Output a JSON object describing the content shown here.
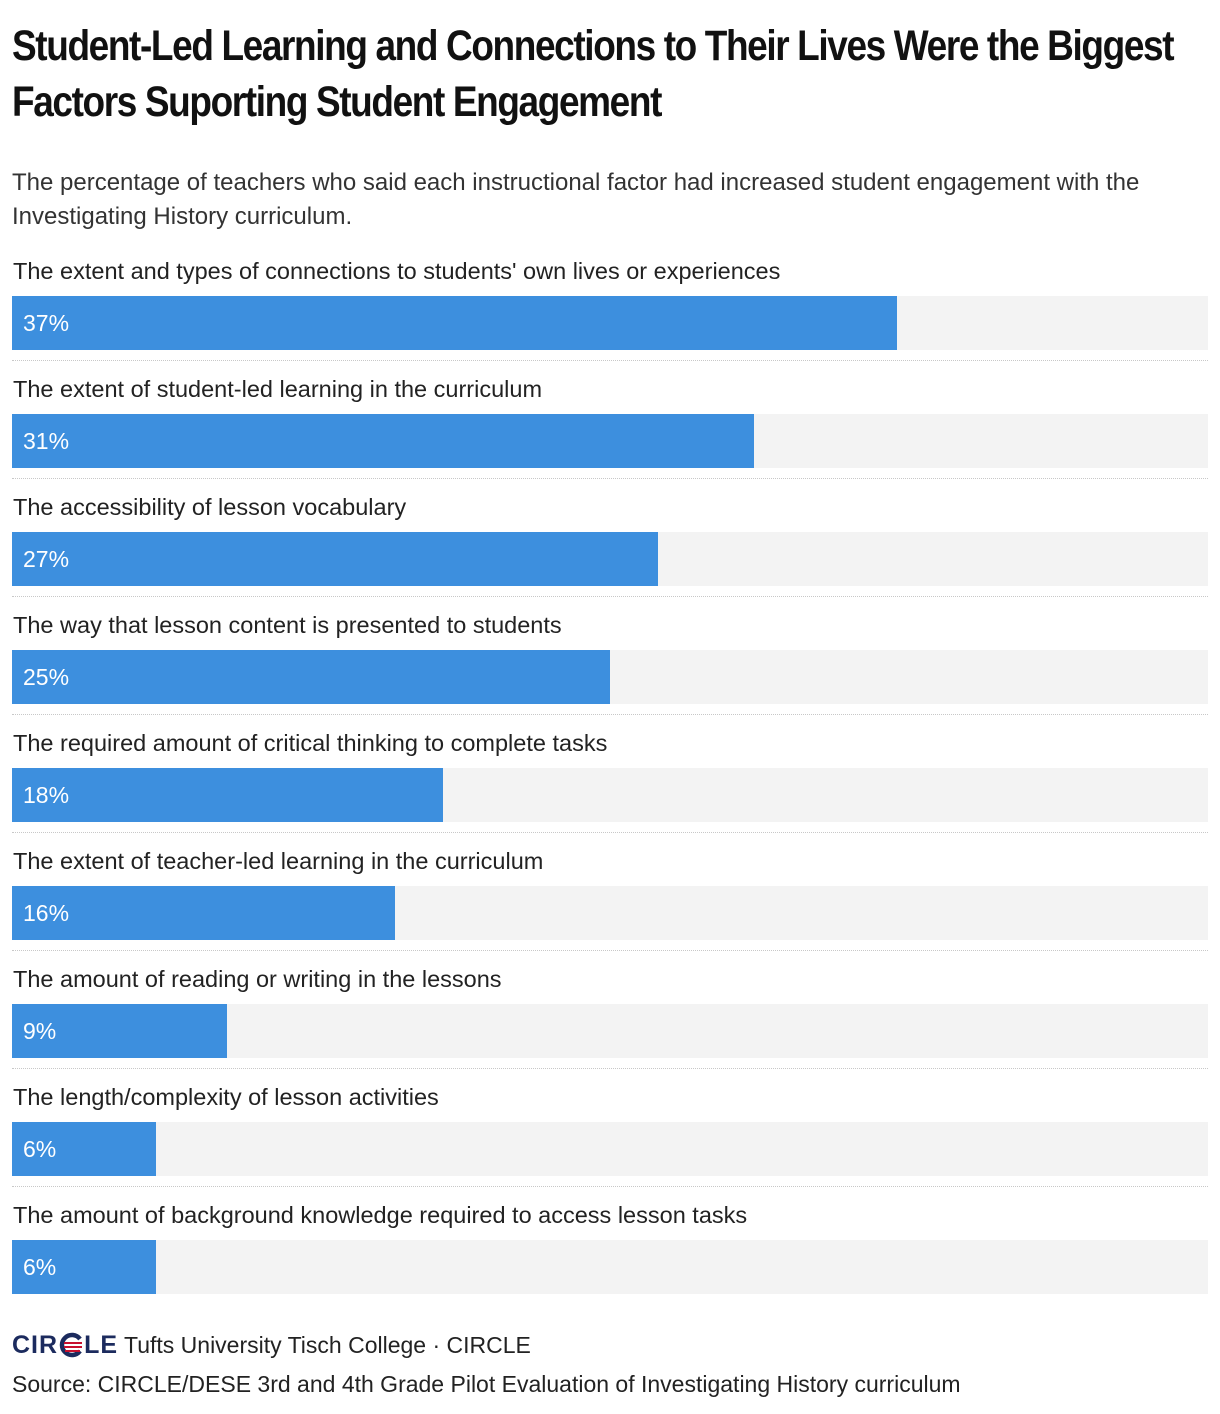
{
  "header": {
    "title": "Student-Led Learning and Connections to Their Lives Were the Biggest Factors Suporting Student Engagement",
    "subtitle": "The percentage of teachers who said each instructional factor had increased student engagement with the Investigating History curriculum."
  },
  "colors": {
    "bar": "#3d8fde",
    "track": "#f3f3f3",
    "logo": "#1c2b5e",
    "logo_accent": "#c8102e"
  },
  "chart_data": {
    "type": "bar",
    "orientation": "horizontal",
    "title": "Student-Led Learning and Connections to Their Lives Were the Biggest Factors Suporting Student Engagement",
    "xlabel": "",
    "ylabel": "",
    "xlim": [
      0,
      50
    ],
    "categories": [
      "The extent and types of connections to students' own lives or experiences",
      "The extent of student-led learning in the curriculum",
      "The accessibility of lesson vocabulary",
      "The way that lesson content is presented to students",
      "The required amount of critical thinking to complete tasks",
      "The extent of teacher-led learning in the curriculum",
      "The amount of reading or writing in the lessons",
      "The length/complexity of lesson activities",
      "The amount of background knowledge required to access lesson tasks"
    ],
    "values": [
      37,
      31,
      27,
      25,
      18,
      16,
      9,
      6,
      6
    ],
    "value_labels": [
      "37%",
      "31%",
      "27%",
      "25%",
      "18%",
      "16%",
      "9%",
      "6%",
      "6%"
    ]
  },
  "footer": {
    "logo_left": "CIR",
    "logo_right": "LE",
    "org": "Tufts University Tisch College · CIRCLE",
    "source": "Source: CIRCLE/DESE 3rd and 4th Grade Pilot Evaluation of Investigating History curriculum"
  }
}
